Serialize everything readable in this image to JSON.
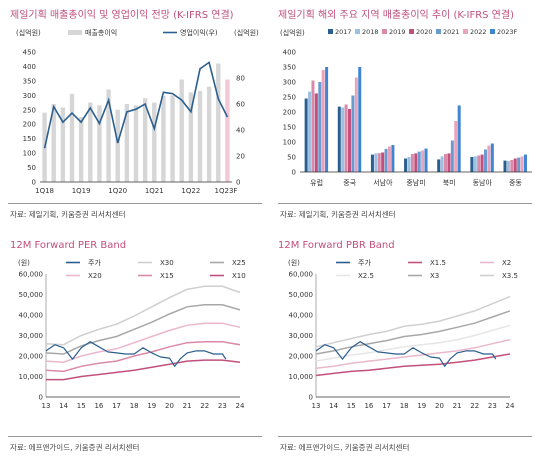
{
  "sales_chart": {
    "title": "제일기획 매출총이익 및 영업이익 전망 (K-IFRS 연결)",
    "unit_left": "(십억원)",
    "unit_right": "(십억원)",
    "source": "자료: 제일기획, 키움증권 리서치센터",
    "chart_data": {
      "type": "bar",
      "ylim": [
        0,
        450
      ],
      "y2lim": [
        0,
        100
      ],
      "yticks": [
        0,
        50,
        100,
        150,
        200,
        250,
        300,
        350,
        400,
        450
      ],
      "y2ticks": [
        0,
        20,
        40,
        60,
        80
      ],
      "xticklabels": [
        {
          "i": 0,
          "label": "1Q18"
        },
        {
          "i": 4,
          "label": "1Q19"
        },
        {
          "i": 8,
          "label": "1Q20"
        },
        {
          "i": 12,
          "label": "1Q21"
        },
        {
          "i": 16,
          "label": "1Q22"
        },
        {
          "i": 20,
          "label": "1Q23F"
        }
      ],
      "legend": [
        {
          "name": "매출총이익",
          "color": "#d6d6d6"
        },
        {
          "name": "영업이익(우)",
          "color": "#2b5f8f"
        }
      ],
      "bars": [
        240,
        270,
        258,
        305,
        225,
        275,
        265,
        320,
        250,
        270,
        265,
        290,
        275,
        298,
        300,
        355,
        310,
        315,
        330,
        410,
        355
      ],
      "line": [
        26,
        58,
        46,
        53,
        46,
        57,
        45,
        63,
        30,
        54,
        56,
        60,
        41,
        69,
        68,
        63,
        54,
        87,
        92,
        64,
        50
      ],
      "forecast_from": 20
    }
  },
  "overseas_chart": {
    "title": "제일기획 해외 주요 지역 매출총이익 추이 (K-IFRS 연결)",
    "unit": "(십억원)",
    "source": "자료: 제일기획, 키움증권 리서치센터",
    "chart_data": {
      "type": "bar",
      "ylim": [
        0,
        400
      ],
      "yticks": [
        0,
        50,
        100,
        150,
        200,
        250,
        300,
        350,
        400
      ],
      "categories": [
        "유럽",
        "중국",
        "서남아",
        "중남미",
        "북미",
        "동남아",
        "중동"
      ],
      "series": [
        {
          "name": "2017",
          "color": "#2b5f8f",
          "values": [
            245,
            218,
            58,
            45,
            42,
            50,
            38
          ]
        },
        {
          "name": "2018",
          "color": "#9dbfe0",
          "values": [
            268,
            215,
            62,
            50,
            52,
            52,
            37
          ]
        },
        {
          "name": "2019",
          "color": "#d98aa8",
          "values": [
            305,
            225,
            63,
            60,
            60,
            55,
            40
          ]
        },
        {
          "name": "2020",
          "color": "#c2507c",
          "values": [
            262,
            210,
            65,
            62,
            62,
            58,
            45
          ]
        },
        {
          "name": "2021",
          "color": "#6a9bd0",
          "values": [
            300,
            255,
            77,
            68,
            105,
            75,
            48
          ]
        },
        {
          "name": "2022",
          "color": "#e8a4be",
          "values": [
            340,
            315,
            85,
            72,
            170,
            88,
            52
          ]
        },
        {
          "name": "2023F",
          "color": "#3f85d0",
          "values": [
            350,
            350,
            90,
            78,
            222,
            95,
            58
          ]
        }
      ]
    }
  },
  "per_chart": {
    "title": "12M Forward PER Band",
    "unit": "(원)",
    "source": "자료: 에프앤가이드, 키움증권 리서치센터",
    "chart_data": {
      "type": "line",
      "ylim": [
        0,
        60000
      ],
      "yticks": [
        0,
        10000,
        20000,
        30000,
        40000,
        50000,
        60000
      ],
      "xlim": [
        13,
        24
      ],
      "xticks": [
        13,
        14,
        15,
        16,
        17,
        18,
        19,
        20,
        21,
        22,
        23,
        24
      ],
      "legend_rows": [
        [
          "주가",
          "X30",
          "X25"
        ],
        [
          "X20",
          "X15",
          "X10"
        ]
      ],
      "price": {
        "name": "주가",
        "color": "#2b5f8f",
        "x": [
          13,
          13.5,
          14,
          14.5,
          15,
          15.5,
          16,
          16.5,
          17,
          17.5,
          18,
          18.5,
          19,
          19.5,
          20,
          20.3,
          20.6,
          21,
          21.5,
          22,
          22.5,
          23,
          23.2
        ],
        "y": [
          22500,
          25500,
          24000,
          18500,
          24000,
          27000,
          24500,
          22000,
          21500,
          21000,
          21000,
          24000,
          21500,
          19500,
          19000,
          15000,
          18500,
          21500,
          22500,
          22500,
          21000,
          21000,
          18500
        ]
      },
      "bands": [
        {
          "name": "X30",
          "color": "#cfcfcf",
          "x": [
            13,
            14,
            15,
            16,
            17,
            18,
            19,
            20,
            21,
            22,
            23,
            24
          ],
          "y": [
            26000,
            25500,
            30000,
            33000,
            35500,
            39500,
            44000,
            48500,
            52500,
            54000,
            54000,
            51000
          ]
        },
        {
          "name": "X25",
          "color": "#a8a8a8",
          "x": [
            13,
            14,
            15,
            16,
            17,
            18,
            19,
            20,
            21,
            22,
            23,
            24
          ],
          "y": [
            21500,
            21000,
            25000,
            27500,
            29500,
            33000,
            36500,
            40500,
            44000,
            45000,
            45000,
            42500
          ]
        },
        {
          "name": "X20",
          "color": "#eab8cc",
          "x": [
            13,
            14,
            15,
            16,
            17,
            18,
            19,
            20,
            21,
            22,
            23,
            24
          ],
          "y": [
            17500,
            17000,
            20000,
            22000,
            23500,
            26500,
            29500,
            32500,
            35000,
            36000,
            36000,
            34000
          ]
        },
        {
          "name": "X15",
          "color": "#d98aa8",
          "x": [
            13,
            14,
            15,
            16,
            17,
            18,
            19,
            20,
            21,
            22,
            23,
            24
          ],
          "y": [
            13000,
            12500,
            15000,
            16500,
            17500,
            20000,
            22000,
            24500,
            26500,
            27000,
            27000,
            25500
          ]
        },
        {
          "name": "X10",
          "color": "#c2507c",
          "x": [
            13,
            14,
            15,
            16,
            17,
            18,
            19,
            20,
            21,
            22,
            23,
            24
          ],
          "y": [
            8500,
            8500,
            10000,
            11000,
            12000,
            13000,
            14500,
            16000,
            17500,
            18000,
            18000,
            17000
          ]
        }
      ]
    }
  },
  "pbr_chart": {
    "title": "12M Forward PBR Band",
    "unit": "(원)",
    "source": "자료: 에프앤가이드, 키움증권 리서치센터",
    "chart_data": {
      "type": "line",
      "ylim": [
        0,
        60000
      ],
      "yticks": [
        0,
        10000,
        20000,
        30000,
        40000,
        50000,
        60000
      ],
      "xlim": [
        13,
        24
      ],
      "xticks": [
        13,
        14,
        15,
        16,
        17,
        18,
        19,
        20,
        21,
        22,
        23,
        24
      ],
      "legend_rows": [
        [
          "주가",
          "X1.5",
          "X2"
        ],
        [
          "X2.5",
          "X3",
          "X3.5"
        ]
      ],
      "price": {
        "name": "주가",
        "color": "#2b5f8f",
        "x": [
          13,
          13.5,
          14,
          14.5,
          15,
          15.5,
          16,
          16.5,
          17,
          17.5,
          18,
          18.5,
          19,
          19.5,
          20,
          20.3,
          20.6,
          21,
          21.5,
          22,
          22.5,
          23,
          23.2
        ],
        "y": [
          22500,
          25500,
          24000,
          18500,
          24000,
          27000,
          24500,
          22000,
          21500,
          21000,
          21000,
          24000,
          21500,
          19500,
          19000,
          15000,
          18500,
          21500,
          22500,
          22500,
          21000,
          21000,
          18500
        ]
      },
      "bands": [
        {
          "name": "X1.5",
          "color": "#c2507c",
          "x": [
            13,
            14,
            15,
            16,
            17,
            18,
            19,
            20,
            21,
            22,
            23,
            24
          ],
          "y": [
            10500,
            11500,
            12500,
            13000,
            14000,
            15000,
            15500,
            16000,
            17000,
            18000,
            19500,
            21000
          ]
        },
        {
          "name": "X2",
          "color": "#eab8cc",
          "x": [
            13,
            14,
            15,
            16,
            17,
            18,
            19,
            20,
            21,
            22,
            23,
            24
          ],
          "y": [
            14000,
            15000,
            16500,
            17500,
            18500,
            19500,
            20500,
            21500,
            22500,
            24000,
            26000,
            28000
          ]
        },
        {
          "name": "X2.5",
          "color": "#e6e6e6",
          "x": [
            13,
            14,
            15,
            16,
            17,
            18,
            19,
            20,
            21,
            22,
            23,
            24
          ],
          "y": [
            17500,
            19000,
            20500,
            21500,
            23000,
            24500,
            25500,
            26500,
            28000,
            30000,
            32500,
            35000
          ]
        },
        {
          "name": "X3",
          "color": "#a8a8a8",
          "x": [
            13,
            14,
            15,
            16,
            17,
            18,
            19,
            20,
            21,
            22,
            23,
            24
          ],
          "y": [
            21000,
            22500,
            24500,
            26000,
            27500,
            29500,
            30500,
            32000,
            34000,
            36000,
            39000,
            42000
          ]
        },
        {
          "name": "X3.5",
          "color": "#d0d0d0",
          "x": [
            13,
            14,
            15,
            16,
            17,
            18,
            19,
            20,
            21,
            22,
            23,
            24
          ],
          "y": [
            24500,
            26500,
            28500,
            30500,
            32000,
            34500,
            35500,
            37000,
            39500,
            42000,
            45500,
            49000
          ]
        }
      ]
    }
  }
}
